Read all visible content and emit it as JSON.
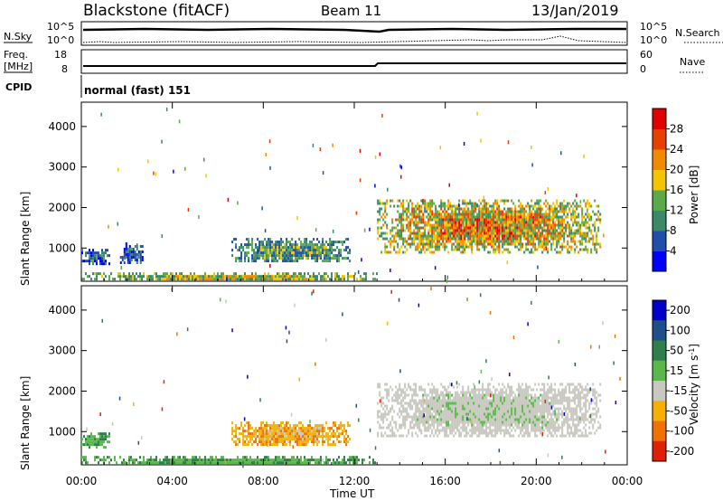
{
  "header": {
    "station": "Blackstone (fitACF)",
    "beam": "Beam 11",
    "date": "13/Jan/2019"
  },
  "top_panels": {
    "nsky_label": "N.Sky",
    "nsearch_label": "N.Search",
    "freq_label_1": "Freq.",
    "freq_label_2": "[MHz]",
    "nave_label": "Nave",
    "cpid_label": "CPID",
    "cpid_value": "normal (fast) 151",
    "left_ticks_noise": [
      "10^5",
      "10^0"
    ],
    "right_ticks_noise": [
      "10^5",
      "10^0"
    ],
    "left_ticks_freq": [
      "18",
      "8"
    ],
    "right_ticks_nave": [
      "60",
      "0"
    ]
  },
  "colors": {
    "power_scale": [
      "#0000ff",
      "#1f4faa",
      "#3a8a68",
      "#5aaa4a",
      "#f5c400",
      "#f08a00",
      "#e84000",
      "#e00000"
    ],
    "velocity_scale": [
      "#0000cc",
      "#1f4f8a",
      "#2e7f4a",
      "#5ab84a",
      "#c8c8c0",
      "#f5b000",
      "#f07000",
      "#e02000"
    ]
  },
  "chart_data": [
    {
      "type": "heatmap",
      "title": "Power",
      "xlabel": "",
      "ylabel": "Slant Range [km]",
      "x_ticks": [
        "00:00",
        "04:00",
        "08:00",
        "12:00",
        "16:00",
        "20:00",
        "00:00"
      ],
      "y_ticks": [
        "1000",
        "2000",
        "3000",
        "4000"
      ],
      "ylim": [
        180,
        4600
      ],
      "colorbar_label": "Power [dB]",
      "colorbar_ticks": [
        "4",
        "8",
        "12",
        "16",
        "20",
        "24",
        "28"
      ],
      "colorbar_range": [
        0,
        32
      ],
      "echo_regions": [
        {
          "t_start": 0.0,
          "t_end": 1.2,
          "r_min": 620,
          "r_max": 980,
          "level": "blue-green"
        },
        {
          "t_start": 1.7,
          "t_end": 2.7,
          "r_min": 640,
          "r_max": 1140,
          "level": "blue-green"
        },
        {
          "t_start": 6.6,
          "t_end": 11.8,
          "r_min": 650,
          "r_max": 1250,
          "level": "green-yellow"
        },
        {
          "t_start": 0.0,
          "t_end": 13.0,
          "r_min": 200,
          "r_max": 400,
          "level": "green-orange"
        },
        {
          "t_start": 13.0,
          "t_end": 22.8,
          "r_min": 900,
          "r_max": 2200,
          "level": "green-orange-red"
        }
      ]
    },
    {
      "type": "heatmap",
      "title": "Velocity",
      "xlabel": "Time UT",
      "ylabel": "Slant Range [km]",
      "x_ticks": [
        "00:00",
        "04:00",
        "08:00",
        "12:00",
        "16:00",
        "20:00",
        "00:00"
      ],
      "y_ticks": [
        "1000",
        "2000",
        "3000",
        "4000"
      ],
      "ylim": [
        180,
        4600
      ],
      "colorbar_label": "Velocity [m s^-1]",
      "colorbar_ticks": [
        "200",
        "100",
        "50",
        "15",
        "-15",
        "-50",
        "-100",
        "-200"
      ],
      "echo_regions": [
        {
          "t_start": 0.0,
          "t_end": 1.2,
          "r_min": 620,
          "r_max": 980,
          "level": "green"
        },
        {
          "t_start": 6.6,
          "t_end": 11.8,
          "r_min": 650,
          "r_max": 1250,
          "level": "orange"
        },
        {
          "t_start": 0.0,
          "t_end": 13.0,
          "r_min": 200,
          "r_max": 400,
          "level": "green"
        },
        {
          "t_start": 13.0,
          "t_end": 22.8,
          "r_min": 900,
          "r_max": 2200,
          "level": "grey"
        }
      ]
    }
  ]
}
